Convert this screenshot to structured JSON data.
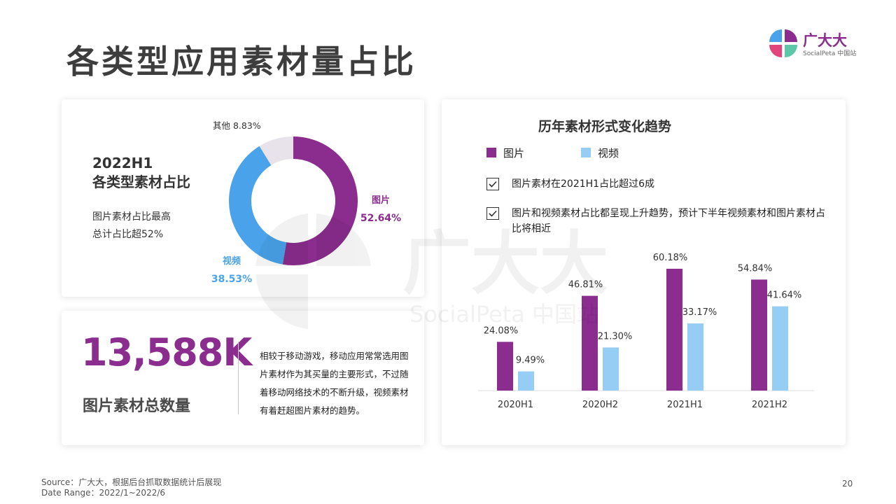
{
  "page": {
    "title": "各类型应用素材量占比",
    "page_number": "20"
  },
  "logo": {
    "name": "广大大",
    "sub": "SocialPeta 中国站"
  },
  "watermark": {
    "main": "广大大",
    "sub": "SocialPeta 中国站"
  },
  "donut_card": {
    "heading_line1": "2022H1",
    "heading_line2": "各类型素材占比",
    "note_line1": "图片素材占比最高",
    "note_line2": "总计占比超52%"
  },
  "total_card": {
    "number": "13,588K",
    "label": "图片素材总数量",
    "desc": "相较于移动游戏，移动应用常常选用图片素材作为其买量的主要形式，不过随着移动网络技术的不断升级，视频素材有着赶超图片素材的趋势。"
  },
  "trend_card": {
    "title": "历年素材形式变化趋势",
    "legend": [
      {
        "label": "图片",
        "color": "#8a2d8e"
      },
      {
        "label": "视频",
        "color": "#96cdf5"
      }
    ],
    "checks": [
      "图片素材在2021H1占比超过6成",
      "图片和视频素材占比都呈现上升趋势，预计下半年视频素材和图片素材占比将相近"
    ]
  },
  "footer": {
    "source": "Source：广大大，根据后台抓取数据统计后展现",
    "range": "Date Range：2022/1~2022/6"
  },
  "colors": {
    "purple": "#8a2d8e",
    "blue": "#4aa3ea",
    "light_blue": "#96cdf5",
    "gray": "#e8e3ea"
  },
  "chart_data": [
    {
      "type": "pie",
      "categories": [
        "图片",
        "视频",
        "其他"
      ],
      "values": [
        52.64,
        38.53,
        8.83
      ],
      "value_labels": [
        "52.64%",
        "38.53%",
        "8.83%"
      ],
      "colors": [
        "#8a2d8e",
        "#4aa3ea",
        "#e8e3ea"
      ]
    },
    {
      "type": "bar",
      "categories": [
        "2020H1",
        "2020H2",
        "2021H1",
        "2021H2"
      ],
      "series": [
        {
          "name": "图片",
          "values": [
            24.08,
            46.81,
            60.18,
            54.84
          ],
          "labels": [
            "24.08%",
            "46.81%",
            "60.18%",
            "54.84%"
          ],
          "color": "#8a2d8e"
        },
        {
          "name": "视频",
          "values": [
            9.49,
            21.3,
            33.17,
            41.64
          ],
          "labels": [
            "9.49%",
            "21.30%",
            "33.17%",
            "41.64%"
          ],
          "color": "#96cdf5"
        }
      ],
      "ylim": [
        0,
        65
      ],
      "grid": false
    }
  ]
}
